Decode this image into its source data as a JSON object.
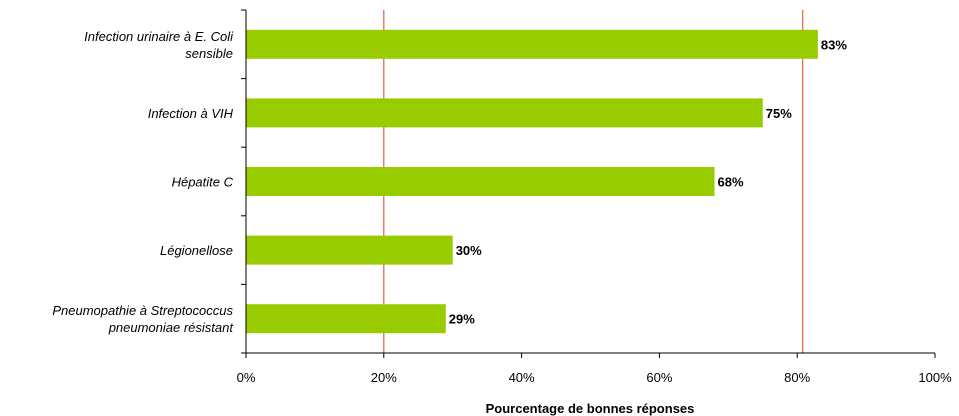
{
  "chart_data": {
    "type": "bar",
    "orientation": "horizontal",
    "categories": [
      [
        "Infection urinaire à E. Coli",
        "sensible"
      ],
      [
        "Infection à VIH"
      ],
      [
        "Hépatite C"
      ],
      [
        "Légionellose"
      ],
      [
        "Pneumopathie à Streptococcus",
        "pneumoniae résistant"
      ]
    ],
    "values": [
      83,
      75,
      68,
      30,
      29
    ],
    "data_labels": [
      "83%",
      "75%",
      "68%",
      "30%",
      "29%"
    ],
    "xlabel": "Pourcentage de bonnes réponses",
    "xlim": [
      0,
      100
    ],
    "xticks": [
      0,
      20,
      40,
      60,
      80,
      100
    ],
    "xtick_labels": [
      "0%",
      "20%",
      "40%",
      "60%",
      "80%",
      "100%"
    ],
    "reference_lines": [
      20,
      80.8
    ],
    "grid": false,
    "legend": "none",
    "colors": {
      "bar": "#99cc00",
      "reference_line": "#e06040",
      "axis": "#000000"
    }
  }
}
